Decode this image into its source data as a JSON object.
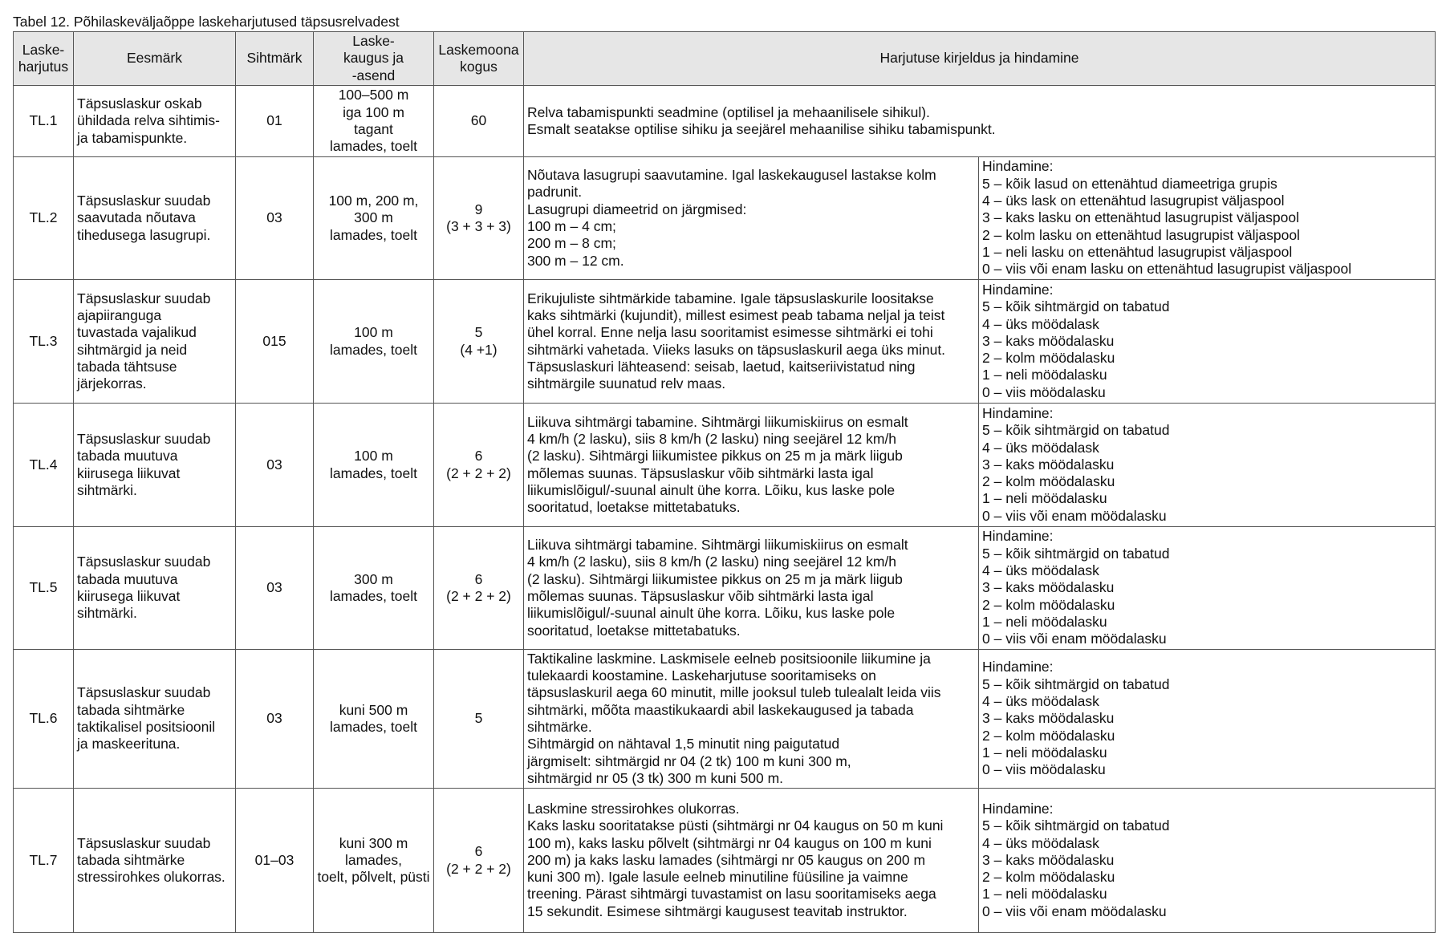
{
  "caption": "Tabel 12. Põhilaskeväljaõppe laskeharjutused täpsusrelvadest",
  "headers": [
    [
      "Laske-",
      "harjutus"
    ],
    [
      "Eesmärk"
    ],
    [
      "Sihtmärk"
    ],
    [
      "Laske-",
      "kaugus ja",
      "-asend"
    ],
    [
      "Laskemoona",
      "kogus"
    ],
    [
      "Harjutuse kirjeldus ja hindamine"
    ]
  ],
  "rows": [
    {
      "id": "TL.1",
      "goal": [
        "Täpsuslaskur oskab",
        "ühildada relva sihtimis-",
        "ja tabamispunkte."
      ],
      "target": "01",
      "distance": [
        "100–500 m",
        "iga 100 m",
        "tagant",
        "lamades, toelt"
      ],
      "ammo": [
        "60"
      ],
      "description": [
        "Relva tabamispunkti seadmine (optilisel ja mehaanilisele sihikul).",
        "Esmalt seatakse optilise sihiku ja seejärel mehaanilise sihiku tabamispunkt."
      ],
      "scoring": []
    },
    {
      "id": "TL.2",
      "goal": [
        "Täpsuslaskur suudab",
        "saavutada nõutava",
        "tihedusega lasugrupi."
      ],
      "target": "03",
      "distance": [
        "100 m, 200 m,",
        "300 m",
        "lamades, toelt"
      ],
      "ammo": [
        "9",
        "(3 + 3 + 3)"
      ],
      "description": [
        "Nõutava lasugrupi saavutamine. Igal laskekaugusel lastakse kolm",
        "padrunit.",
        "Lasugrupi diameetrid on järgmised:",
        "100 m – 4 cm;",
        "200 m – 8 cm;",
        "300 m – 12 cm."
      ],
      "scoring": [
        "Hindamine:",
        "5 – kõik lasud on ettenähtud diameetriga grupis",
        "4 – üks lask on ettenähtud lasugrupist väljaspool",
        "3 – kaks lasku on ettenähtud lasugrupist väljaspool",
        "2 – kolm lasku on ettenähtud lasugrupist väljaspool",
        "1 – neli lasku on ettenähtud lasugrupist väljaspool",
        "0 – viis või enam lasku on ettenähtud lasugrupist väljaspool"
      ]
    },
    {
      "id": "TL.3",
      "goal": [
        "Täpsuslaskur suudab",
        "ajapiiranguga",
        "tuvastada vajalikud",
        "sihtmärgid ja neid",
        "tabada tähtsuse",
        "järjekorras."
      ],
      "target": "015",
      "distance": [
        "100 m",
        "lamades, toelt"
      ],
      "ammo": [
        "5",
        "(4 +1)"
      ],
      "description": [
        "Erikujuliste sihtmärkide tabamine. Igale täpsuslaskurile loositakse",
        "kaks sihtmärki (kujundit), millest esimest peab tabama neljal ja teist",
        "ühel korral. Enne nelja lasu sooritamist esimesse sihtmärki ei tohi",
        "sihtmärki vahetada. Viieks lasuks on täpsuslaskuril aega üks minut.",
        "Täpsuslaskuri lähteasend: seisab, laetud, kaitseriivistatud ning",
        "sihtmärgile suunatud relv maas."
      ],
      "scoring": [
        "Hindamine:",
        "5 – kõik sihtmärgid on tabatud",
        "4 – üks möödalask",
        "3 – kaks möödalasku",
        "2 – kolm möödalasku",
        "1 – neli möödalasku",
        "0 – viis möödalasku"
      ]
    },
    {
      "id": "TL.4",
      "goal": [
        "Täpsuslaskur suudab",
        "tabada muutuva",
        "kiirusega liikuvat",
        "sihtmärki."
      ],
      "target": "03",
      "distance": [
        "100 m",
        "lamades, toelt"
      ],
      "ammo": [
        "6",
        "(2 + 2 + 2)"
      ],
      "description": [
        "Liikuva sihtmärgi tabamine. Sihtmärgi liikumiskiirus on esmalt",
        "4 km/h (2 lasku), siis 8 km/h (2 lasku) ning seejärel 12 km/h",
        "(2 lasku). Sihtmärgi liikumistee pikkus on 25 m ja märk liigub",
        "mõlemas suunas. Täpsuslaskur võib sihtmärki lasta igal",
        "liikumislõigul/-suunal ainult ühe korra. Lõiku, kus laske pole",
        "sooritatud, loetakse mittetabatuks."
      ],
      "scoring": [
        "Hindamine:",
        "5 – kõik sihtmärgid on tabatud",
        "4 – üks möödalask",
        "3 – kaks möödalasku",
        "2 – kolm möödalasku",
        "1 – neli möödalasku",
        "0 – viis või enam möödalasku"
      ]
    },
    {
      "id": "TL.5",
      "goal": [
        "Täpsuslaskur suudab",
        "tabada muutuva",
        "kiirusega liikuvat",
        "sihtmärki."
      ],
      "target": "03",
      "distance": [
        "300 m",
        "lamades, toelt"
      ],
      "ammo": [
        "6",
        "(2 + 2 + 2)"
      ],
      "description": [
        "Liikuva sihtmärgi tabamine. Sihtmärgi liikumiskiirus on esmalt",
        "4 km/h (2 lasku), siis 8 km/h (2 lasku) ning seejärel 12 km/h",
        "(2 lasku). Sihtmärgi liikumistee pikkus on 25 m ja märk liigub",
        "mõlemas suunas. Täpsuslaskur võib sihtmärki lasta igal",
        "liikumislõigul/-suunal ainult ühe korra. Lõiku, kus laske pole",
        "sooritatud, loetakse mittetabatuks."
      ],
      "scoring": [
        "Hindamine:",
        "5 – kõik sihtmärgid on tabatud",
        "4 – üks möödalask",
        "3 – kaks möödalasku",
        "2 – kolm möödalasku",
        "1 – neli möödalasku",
        "0 – viis või enam möödalasku"
      ]
    },
    {
      "id": "TL.6",
      "goal": [
        "Täpsuslaskur suudab",
        "tabada sihtmärke",
        "taktikalisel positsioonil",
        "ja maskeerituna."
      ],
      "target": "03",
      "distance": [
        "kuni 500 m",
        "lamades, toelt"
      ],
      "ammo": [
        "5"
      ],
      "description": [
        "Taktikaline laskmine. Laskmisele eelneb positsioonile liikumine ja",
        "tulekaardi koostamine. Laskeharjutuse sooritamiseks on",
        "täpsuslaskuril aega 60 minutit, mille jooksul tuleb tulealalt leida viis",
        "sihtmärki, mõõta maastikukaardi abil laskekaugused ja tabada",
        "sihtmärke.",
        "Sihtmärgid on nähtaval 1,5 minutit ning paigutatud",
        "järgmiselt: sihtmärgid nr 04 (2 tk) 100 m kuni 300 m,",
        "sihtmärgid nr 05 (3 tk) 300 m kuni 500 m."
      ],
      "scoring": [
        "Hindamine:",
        "5 – kõik sihtmärgid on tabatud",
        "4 – üks möödalask",
        "3 – kaks möödalasku",
        "2 – kolm möödalasku",
        "1 – neli möödalasku",
        "0 – viis möödalasku"
      ]
    },
    {
      "id": "TL.7",
      "goal": [
        "Täpsuslaskur suudab",
        "tabada sihtmärke",
        "stressirohkes olukorras."
      ],
      "target": "01–03",
      "distance": [
        "kuni 300 m",
        "lamades,",
        "toelt, põlvelt, püsti"
      ],
      "ammo": [
        "6",
        "(2 + 2 + 2)"
      ],
      "description": [
        "Laskmine stressirohkes olukorras.",
        "Kaks lasku sooritatakse püsti (sihtmärgi nr 04 kaugus on 50 m kuni",
        "100 m), kaks lasku põlvelt (sihtmärgi nr 04 kaugus on 100 m kuni",
        "200 m) ja kaks lasku lamades (sihtmärgi nr 05 kaugus on 200 m",
        "kuni 300 m). Igale lasule eelneb minutiline füüsiline ja vaimne",
        "treening. Pärast sihtmärgi tuvastamist on lasu sooritamiseks aega",
        "15 sekundit. Esimese sihtmärgi kaugusest teavitab instruktor."
      ],
      "scoring": [
        "Hindamine:",
        "5 – kõik sihtmärgid on tabatud",
        "4 – üks möödalask",
        "3 – kaks möödalasku",
        "2 – kolm möödalasku",
        "1 – neli möödalasku",
        "0 – viis või enam möödalasku"
      ]
    }
  ]
}
